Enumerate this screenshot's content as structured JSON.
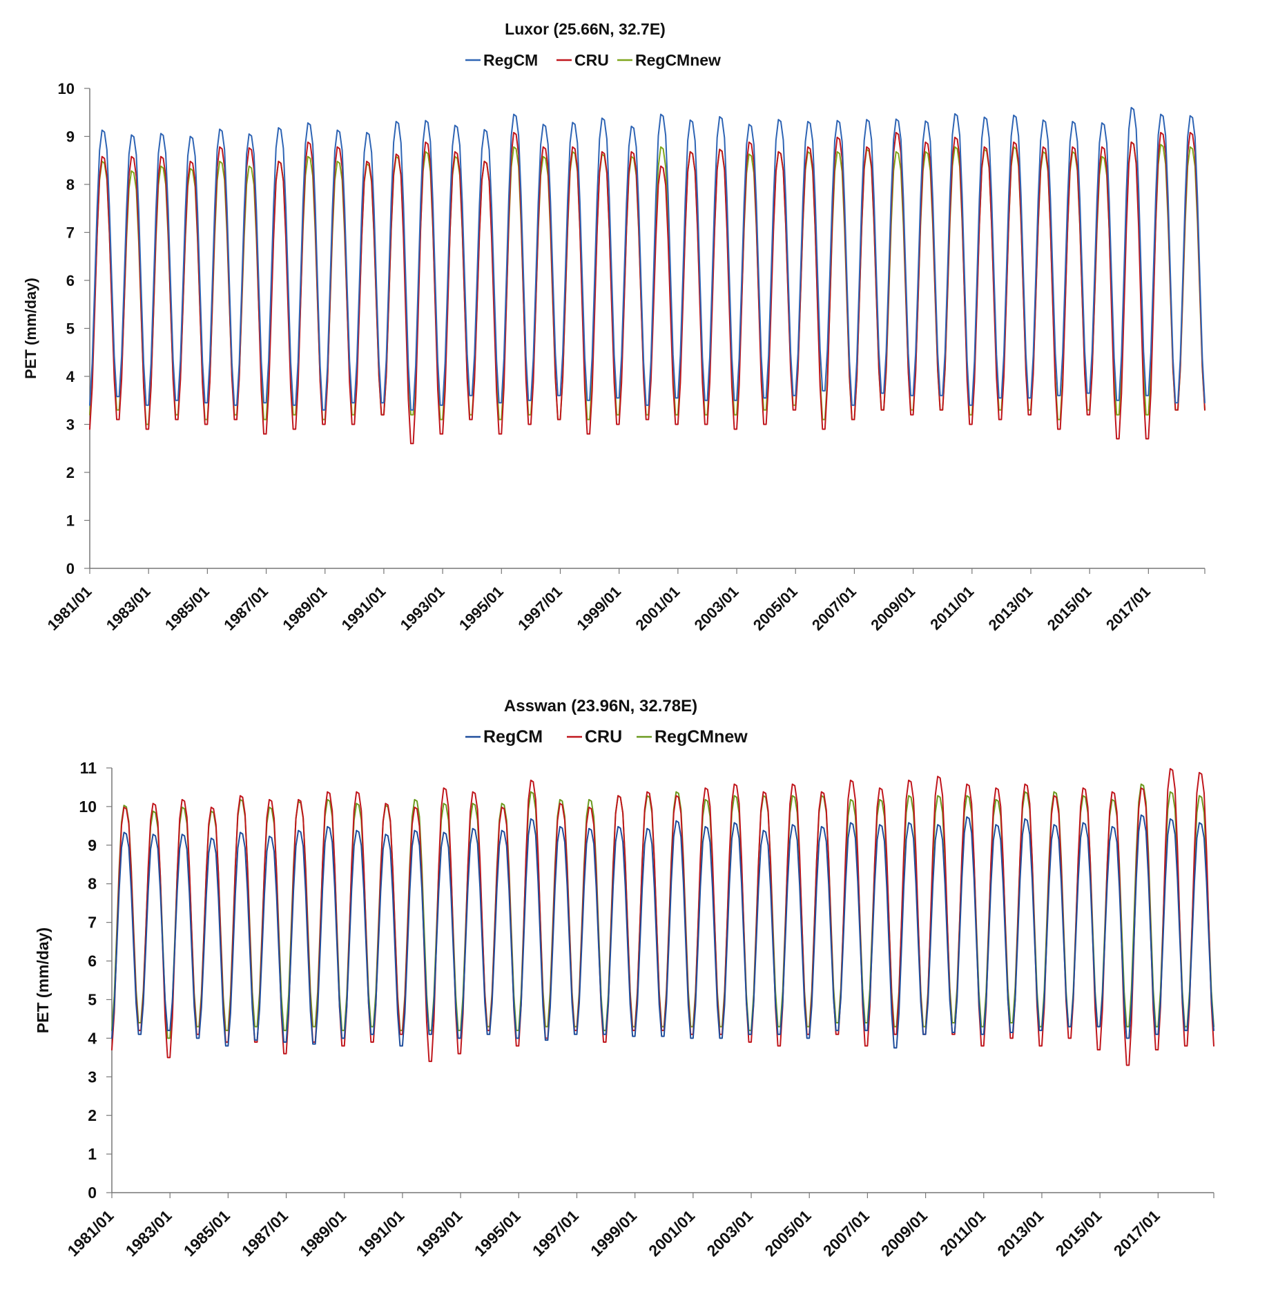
{
  "chart_data": [
    {
      "type": "line",
      "title": "Luxor (25.66N, 32.7E)",
      "ylabel": "PET (mm/day)",
      "xlabel": "",
      "xlim": [
        "1981/01",
        "2018/12"
      ],
      "ylim": [
        0,
        10
      ],
      "y_ticks": [
        0,
        1,
        2,
        3,
        4,
        5,
        6,
        7,
        8,
        9,
        10
      ],
      "x_tick_labels": [
        "1981/01",
        "1983/01",
        "1985/01",
        "1987/01",
        "1989/01",
        "1991/01",
        "1993/01",
        "1995/01",
        "1997/01",
        "1999/01",
        "2001/01",
        "2003/01",
        "2005/01",
        "2007/01",
        "2009/01",
        "2011/01",
        "2013/01",
        "2015/01",
        "2017/01"
      ],
      "grid": false,
      "legend_position": "top-center",
      "x_start": "1981/01",
      "series": [
        {
          "name": "RegCM",
          "color": "#2E64B4",
          "peaks": [
            9.15,
            9.05,
            9.08,
            9.02,
            9.17,
            9.07,
            9.2,
            9.3,
            9.15,
            9.1,
            9.33,
            9.35,
            9.25,
            9.16,
            9.48,
            9.27,
            9.31,
            9.4,
            9.23,
            9.48,
            9.36,
            9.43,
            9.27,
            9.37,
            9.33,
            9.35,
            9.37,
            9.38,
            9.34,
            9.49,
            9.42,
            9.46,
            9.36,
            9.33,
            9.3,
            9.62,
            9.48,
            9.45
          ],
          "troughs": [
            3.4,
            3.58,
            3.4,
            3.5,
            3.45,
            3.4,
            3.45,
            3.4,
            3.3,
            3.45,
            3.45,
            3.3,
            3.4,
            3.6,
            3.45,
            3.5,
            3.6,
            3.5,
            3.55,
            3.4,
            3.55,
            3.5,
            3.5,
            3.55,
            3.6,
            3.7,
            3.4,
            3.65,
            3.6,
            3.6,
            3.4,
            3.55,
            3.55,
            3.6,
            3.65,
            3.5,
            3.6,
            3.45
          ]
        },
        {
          "name": "CRU",
          "color": "#C0161C",
          "peaks": [
            8.6,
            8.6,
            8.6,
            8.5,
            8.8,
            8.78,
            8.5,
            8.9,
            8.8,
            8.5,
            8.65,
            8.9,
            8.7,
            8.5,
            9.1,
            8.8,
            8.8,
            8.7,
            8.7,
            8.4,
            8.7,
            8.75,
            8.9,
            8.7,
            8.8,
            9.0,
            8.8,
            9.1,
            8.9,
            9.0,
            8.8,
            8.9,
            8.8,
            8.8,
            8.8,
            8.9,
            9.1,
            9.1
          ],
          "troughs": [
            2.9,
            3.1,
            2.9,
            3.1,
            3.0,
            3.1,
            2.8,
            2.9,
            3.0,
            3.0,
            3.2,
            2.6,
            2.8,
            3.1,
            2.8,
            3.0,
            3.1,
            2.8,
            3.0,
            3.1,
            3.0,
            3.0,
            2.9,
            3.0,
            3.3,
            2.9,
            3.1,
            3.3,
            3.2,
            3.3,
            3.0,
            3.1,
            3.2,
            2.9,
            3.2,
            2.7,
            2.7,
            3.3
          ]
        },
        {
          "name": "RegCMnew",
          "color": "#7FA51B",
          "peaks": [
            8.5,
            8.3,
            8.4,
            8.35,
            8.5,
            8.4,
            8.5,
            8.6,
            8.5,
            8.45,
            8.6,
            8.7,
            8.6,
            8.5,
            8.8,
            8.6,
            8.7,
            8.65,
            8.6,
            8.8,
            8.7,
            8.75,
            8.65,
            8.7,
            8.7,
            8.7,
            8.75,
            8.7,
            8.7,
            8.8,
            8.75,
            8.8,
            8.7,
            8.7,
            8.6,
            8.9,
            8.85,
            8.8
          ],
          "troughs": [
            3.2,
            3.3,
            3.0,
            3.2,
            3.1,
            3.2,
            3.1,
            3.2,
            3.1,
            3.2,
            3.2,
            3.2,
            3.1,
            3.2,
            3.1,
            3.2,
            3.1,
            3.1,
            3.2,
            3.2,
            3.2,
            3.2,
            3.2,
            3.3,
            3.4,
            3.1,
            3.1,
            3.3,
            3.3,
            3.3,
            3.2,
            3.3,
            3.3,
            3.1,
            3.3,
            3.2,
            3.2,
            3.3
          ]
        }
      ]
    },
    {
      "type": "line",
      "title": "Asswan (23.96N, 32.78E)",
      "ylabel": "PET (mm/day)",
      "xlabel": "",
      "xlim": [
        "1981/01",
        "2018/12"
      ],
      "ylim": [
        0,
        11
      ],
      "y_ticks": [
        0,
        1,
        2,
        3,
        4,
        5,
        6,
        7,
        8,
        9,
        10,
        11
      ],
      "x_tick_labels": [
        "1981/01",
        "1983/01",
        "1985/01",
        "1987/01",
        "1989/01",
        "1991/01",
        "1993/01",
        "1995/01",
        "1997/01",
        "1999/01",
        "2001/01",
        "2003/01",
        "2005/01",
        "2007/01",
        "2009/01",
        "2011/01",
        "2013/01",
        "2015/01",
        "2017/01"
      ],
      "grid": false,
      "legend_position": "top-center",
      "x_start": "1981/01",
      "series": [
        {
          "name": "RegCM",
          "color": "#1F4E9C",
          "peaks": [
            9.35,
            9.3,
            9.3,
            9.2,
            9.35,
            9.25,
            9.4,
            9.5,
            9.4,
            9.3,
            9.4,
            9.35,
            9.45,
            9.4,
            9.7,
            9.5,
            9.45,
            9.5,
            9.45,
            9.65,
            9.5,
            9.6,
            9.4,
            9.55,
            9.5,
            9.6,
            9.55,
            9.6,
            9.55,
            9.75,
            9.55,
            9.7,
            9.55,
            9.6,
            9.5,
            9.8,
            9.7,
            9.6
          ],
          "troughs": [
            4.0,
            4.1,
            4.2,
            4.0,
            3.8,
            3.95,
            3.9,
            3.85,
            4.0,
            4.1,
            3.8,
            4.1,
            4.0,
            4.1,
            4.0,
            3.95,
            4.1,
            4.1,
            4.05,
            4.05,
            4.0,
            4.0,
            4.1,
            4.1,
            4.0,
            4.2,
            4.2,
            3.75,
            4.1,
            4.15,
            4.1,
            4.15,
            4.2,
            4.3,
            4.3,
            4.0,
            4.1,
            4.2
          ]
        },
        {
          "name": "CRU",
          "color": "#C0161C",
          "peaks": [
            10.0,
            10.1,
            10.2,
            10.0,
            10.3,
            10.2,
            10.2,
            10.4,
            10.4,
            10.1,
            10.0,
            10.5,
            10.4,
            10.0,
            10.7,
            10.1,
            10.0,
            10.3,
            10.4,
            10.3,
            10.5,
            10.6,
            10.4,
            10.6,
            10.4,
            10.7,
            10.5,
            10.7,
            10.8,
            10.6,
            10.5,
            10.6,
            10.3,
            10.5,
            10.4,
            10.5,
            11.0,
            10.9
          ],
          "troughs": [
            3.7,
            4.2,
            3.5,
            4.1,
            3.9,
            3.9,
            3.6,
            3.9,
            3.8,
            3.9,
            4.1,
            3.4,
            3.6,
            4.2,
            3.8,
            4.0,
            4.2,
            3.9,
            4.2,
            4.2,
            4.1,
            4.1,
            3.9,
            3.8,
            4.1,
            4.1,
            3.8,
            4.1,
            4.1,
            4.1,
            3.8,
            4.0,
            3.8,
            4.0,
            3.7,
            3.3,
            3.7,
            3.8
          ]
        },
        {
          "name": "RegCMnew",
          "color": "#6B9A1F",
          "peaks": [
            10.05,
            9.9,
            10.0,
            9.9,
            10.2,
            10.0,
            10.15,
            10.2,
            10.1,
            10.05,
            10.2,
            10.1,
            10.1,
            10.1,
            10.4,
            10.2,
            10.2,
            10.3,
            10.3,
            10.4,
            10.2,
            10.3,
            10.3,
            10.3,
            10.3,
            10.2,
            10.2,
            10.3,
            10.3,
            10.3,
            10.2,
            10.4,
            10.4,
            10.3,
            10.2,
            10.6,
            10.4,
            10.3
          ],
          "troughs": [
            4.2,
            4.4,
            4.0,
            4.3,
            4.2,
            4.3,
            4.2,
            4.3,
            4.2,
            4.3,
            4.2,
            4.2,
            4.2,
            4.3,
            4.2,
            4.3,
            4.3,
            4.2,
            4.3,
            4.3,
            4.3,
            4.3,
            4.2,
            4.3,
            4.3,
            4.4,
            4.4,
            4.3,
            4.3,
            4.4,
            4.3,
            4.4,
            4.3,
            4.3,
            4.3,
            4.3,
            4.3,
            4.3
          ]
        }
      ]
    }
  ]
}
